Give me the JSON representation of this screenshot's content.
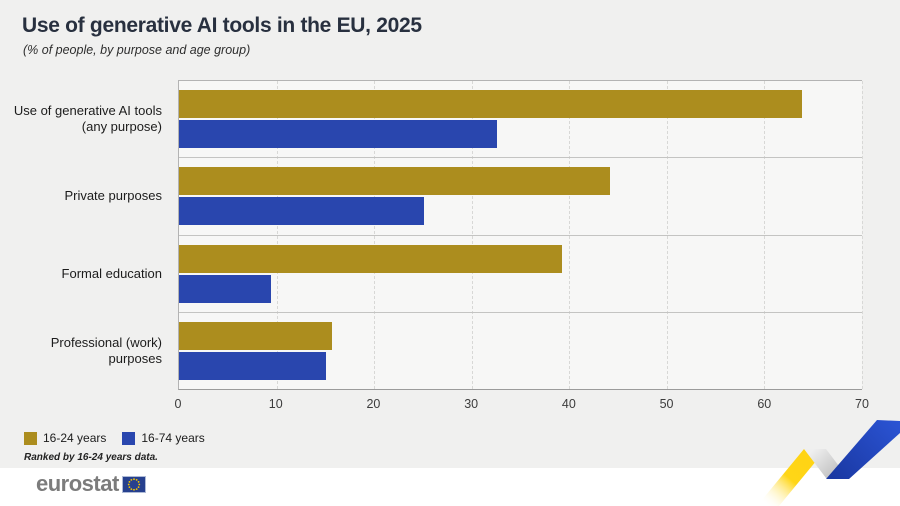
{
  "chart_data": {
    "type": "bar",
    "orientation": "horizontal",
    "title": "Use of generative AI tools in the EU, 2025",
    "subtitle": "(% of people, by purpose and age group)",
    "categories": [
      "Use of generative AI tools (any purpose)",
      "Private purposes",
      "Formal education",
      "Professional (work) purposes"
    ],
    "categories_lines": [
      [
        "Use of generative AI tools",
        "(any purpose)"
      ],
      [
        "Private purposes"
      ],
      [
        "Formal education"
      ],
      [
        "Professional (work) purposes"
      ]
    ],
    "series": [
      {
        "name": "16-24 years",
        "color": "#AC8D1E",
        "values": [
          63.8,
          44.2,
          39.3,
          15.7
        ]
      },
      {
        "name": "16-74 years",
        "color": "#2946AE",
        "values": [
          32.6,
          25.1,
          9.4,
          15.1
        ]
      }
    ],
    "xlim": [
      0,
      70
    ],
    "xticks": [
      0,
      10,
      20,
      30,
      40,
      50,
      60,
      70
    ],
    "xlabel": "",
    "ylabel": "",
    "grid": "vertical-dashed",
    "legend_position": "bottom-left",
    "footnote": "Ranked by 16-24 years data."
  },
  "footer": {
    "brand": "eurostat"
  },
  "colors": {
    "page_background": "#f0f0ef",
    "plot_background": "#f7f7f6",
    "series_gold": "#AC8D1E",
    "series_blue": "#2946AE",
    "title_text": "#28303f",
    "eu_flag_blue": "#26408E",
    "star_yellow": "#F7C700",
    "ribbon_yellow": "#FFD314",
    "ribbon_blue": "#2B54D4"
  }
}
